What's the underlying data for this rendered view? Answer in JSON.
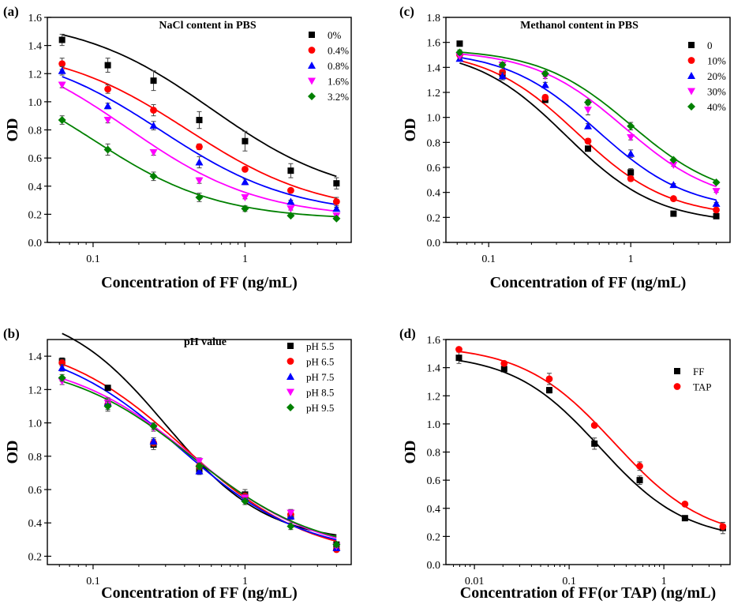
{
  "chart_data": [
    {
      "type": "scatter",
      "panel_label": "(a)",
      "title": "NaCl content in PBS",
      "xlabel": "Concentration of FF (ng/mL)",
      "ylabel": "OD",
      "xscale": "log",
      "xlim": [
        0.05,
        5
      ],
      "ylim": [
        0.0,
        1.6
      ],
      "x_ticks": [
        0.1,
        1
      ],
      "y_ticks": [
        0.0,
        0.2,
        0.4,
        0.6,
        0.8,
        1.0,
        1.2,
        1.4,
        1.6
      ],
      "x_tick_labels": [
        "0.1",
        "1"
      ],
      "y_tick_labels": [
        "0.0",
        "0.2",
        "0.4",
        "0.6",
        "0.8",
        "1.0",
        "1.2",
        "1.4",
        "1.6"
      ],
      "legend_position": "top-right",
      "x": [
        0.0625,
        0.125,
        0.25,
        0.5,
        1,
        2,
        4
      ],
      "series": [
        {
          "name": "0%",
          "color": "#000000",
          "marker": "square",
          "values": [
            1.44,
            1.26,
            1.15,
            0.87,
            0.72,
            0.51,
            0.42
          ],
          "errors": [
            0.04,
            0.05,
            0.07,
            0.06,
            0.07,
            0.05,
            0.04
          ]
        },
        {
          "name": "0.4%",
          "color": "#ff0000",
          "marker": "circle",
          "values": [
            1.27,
            1.09,
            0.94,
            0.68,
            0.52,
            0.37,
            0.29
          ],
          "errors": [
            0.04,
            0.03,
            0.04,
            0.02,
            0.01,
            0.01,
            0.03
          ]
        },
        {
          "name": "0.8%",
          "color": "#0000ff",
          "marker": "triangle-up",
          "values": [
            1.22,
            0.97,
            0.83,
            0.57,
            0.43,
            0.29,
            0.24
          ],
          "errors": [
            0.03,
            0.02,
            0.03,
            0.04,
            0.02,
            0.01,
            0.01
          ]
        },
        {
          "name": "1.6%",
          "color": "#ff00ff",
          "marker": "triangle-down",
          "values": [
            1.12,
            0.87,
            0.64,
            0.44,
            0.32,
            0.24,
            0.19
          ],
          "errors": [
            0.02,
            0.02,
            0.02,
            0.02,
            0.01,
            0.01,
            0.01
          ]
        },
        {
          "name": "3.2%",
          "color": "#008000",
          "marker": "diamond",
          "values": [
            0.87,
            0.66,
            0.47,
            0.32,
            0.24,
            0.19,
            0.17
          ],
          "errors": [
            0.03,
            0.04,
            0.03,
            0.03,
            0.02,
            0.01,
            0.01
          ]
        }
      ],
      "fit_curves": [
        {
          "color": "#000000",
          "top": 1.6,
          "bottom": 0.3,
          "ic50": 0.6,
          "slope": 1.0
        },
        {
          "color": "#ff0000",
          "top": 1.4,
          "bottom": 0.2,
          "ic50": 0.42,
          "slope": 1.0
        },
        {
          "color": "#0000ff",
          "top": 1.4,
          "bottom": 0.19,
          "ic50": 0.28,
          "slope": 1.0
        },
        {
          "color": "#ff00ff",
          "top": 1.45,
          "bottom": 0.17,
          "ic50": 0.17,
          "slope": 1.0
        },
        {
          "color": "#008000",
          "top": 1.3,
          "bottom": 0.16,
          "ic50": 0.1,
          "slope": 1.05
        }
      ]
    },
    {
      "type": "scatter",
      "panel_label": "(c)",
      "title": "Methanol content in PBS",
      "xlabel": "Concentration of FF (ng/mL)",
      "ylabel": "OD",
      "xscale": "log",
      "xlim": [
        0.05,
        5
      ],
      "ylim": [
        0.0,
        1.8
      ],
      "x_ticks": [
        0.1,
        1
      ],
      "y_ticks": [
        0.0,
        0.2,
        0.4,
        0.6,
        0.8,
        1.0,
        1.2,
        1.4,
        1.6,
        1.8
      ],
      "x_tick_labels": [
        "0.1",
        "1"
      ],
      "y_tick_labels": [
        "0.0",
        "0.2",
        "0.4",
        "0.6",
        "0.8",
        "1.0",
        "1.2",
        "1.4",
        "1.6",
        "1.8"
      ],
      "legend_position": "top-right",
      "x": [
        0.0625,
        0.125,
        0.25,
        0.5,
        1,
        2,
        4
      ],
      "series": [
        {
          "name": "0",
          "color": "#000000",
          "marker": "square",
          "values": [
            1.59,
            1.35,
            1.14,
            0.75,
            0.56,
            0.23,
            0.21
          ],
          "errors": [
            0.02,
            0.03,
            0.02,
            0.02,
            0.03,
            0.01,
            0.01
          ]
        },
        {
          "name": "10%",
          "color": "#ff0000",
          "marker": "circle",
          "values": [
            1.5,
            1.36,
            1.16,
            0.81,
            0.51,
            0.35,
            0.26
          ],
          "errors": [
            0.02,
            0.02,
            0.02,
            0.02,
            0.02,
            0.01,
            0.01
          ]
        },
        {
          "name": "20%",
          "color": "#0000ff",
          "marker": "triangle-up",
          "values": [
            1.47,
            1.33,
            1.26,
            0.93,
            0.71,
            0.46,
            0.31
          ],
          "errors": [
            0.02,
            0.03,
            0.02,
            0.02,
            0.03,
            0.01,
            0.01
          ]
        },
        {
          "name": "30%",
          "color": "#ff00ff",
          "marker": "triangle-down",
          "values": [
            1.49,
            1.42,
            1.33,
            1.06,
            0.84,
            0.62,
            0.41
          ],
          "errors": [
            0.02,
            0.02,
            0.02,
            0.04,
            0.02,
            0.01,
            0.01
          ]
        },
        {
          "name": "40%",
          "color": "#008000",
          "marker": "diamond",
          "values": [
            1.52,
            1.42,
            1.35,
            1.12,
            0.93,
            0.66,
            0.48
          ],
          "errors": [
            0.02,
            0.02,
            0.02,
            0.02,
            0.03,
            0.01,
            0.01
          ]
        }
      ],
      "fit_curves": [
        {
          "color": "#000000",
          "top": 1.56,
          "bottom": 0.15,
          "ic50": 0.35,
          "slope": 1.35
        },
        {
          "color": "#ff0000",
          "top": 1.55,
          "bottom": 0.2,
          "ic50": 0.42,
          "slope": 1.35
        },
        {
          "color": "#0000ff",
          "top": 1.54,
          "bottom": 0.25,
          "ic50": 0.58,
          "slope": 1.35
        },
        {
          "color": "#ff00ff",
          "top": 1.54,
          "bottom": 0.3,
          "ic50": 0.9,
          "slope": 1.35
        },
        {
          "color": "#008000",
          "top": 1.55,
          "bottom": 0.33,
          "ic50": 1.0,
          "slope": 1.35
        }
      ]
    },
    {
      "type": "scatter",
      "panel_label": "(b)",
      "title": "pH value",
      "xlabel": "Concentration of FF (ng/mL)",
      "ylabel": "OD",
      "xscale": "log",
      "xlim": [
        0.05,
        5
      ],
      "ylim": [
        0.15,
        1.5
      ],
      "x_ticks": [
        0.1,
        1
      ],
      "y_ticks": [
        0.2,
        0.4,
        0.6,
        0.8,
        1.0,
        1.2,
        1.4
      ],
      "x_tick_labels": [
        "0.1",
        "1"
      ],
      "y_tick_labels": [
        "0.2",
        "0.4",
        "0.6",
        "0.8",
        "1.0",
        "1.2",
        "1.4"
      ],
      "legend_position": "top-right",
      "x": [
        0.0625,
        0.125,
        0.25,
        0.5,
        1,
        2,
        4
      ],
      "series": [
        {
          "name": "pH 5.5",
          "color": "#000000",
          "marker": "square",
          "values": [
            1.37,
            1.21,
            0.87,
            0.72,
            0.57,
            0.44,
            0.27
          ],
          "errors": [
            0.02,
            0.01,
            0.03,
            0.02,
            0.03,
            0.02,
            0.01
          ]
        },
        {
          "name": "pH 6.5",
          "color": "#ff0000",
          "marker": "circle",
          "values": [
            1.36,
            1.11,
            0.88,
            0.74,
            0.56,
            0.45,
            0.24
          ],
          "errors": [
            0.02,
            0.03,
            0.02,
            0.03,
            0.02,
            0.03,
            0.01
          ]
        },
        {
          "name": "pH 7.5",
          "color": "#0000ff",
          "marker": "triangle-up",
          "values": [
            1.33,
            1.12,
            0.89,
            0.71,
            0.55,
            0.44,
            0.25
          ],
          "errors": [
            0.02,
            0.03,
            0.02,
            0.02,
            0.02,
            0.02,
            0.01
          ]
        },
        {
          "name": "pH 8.5",
          "color": "#ff00ff",
          "marker": "triangle-down",
          "values": [
            1.25,
            1.12,
            0.97,
            0.77,
            0.55,
            0.46,
            0.26
          ],
          "errors": [
            0.02,
            0.02,
            0.02,
            0.02,
            0.02,
            0.02,
            0.01
          ]
        },
        {
          "name": "pH 9.5",
          "color": "#008000",
          "marker": "diamond",
          "values": [
            1.27,
            1.1,
            0.98,
            0.74,
            0.53,
            0.38,
            0.27
          ],
          "errors": [
            0.02,
            0.03,
            0.02,
            0.02,
            0.02,
            0.02,
            0.01
          ]
        }
      ],
      "fit_curves": [
        {
          "color": "#000000",
          "top": 1.7,
          "bottom": 0.28,
          "ic50": 0.3,
          "slope": 1.3
        },
        {
          "color": "#ff0000",
          "top": 1.52,
          "bottom": 0.18,
          "ic50": 0.4,
          "slope": 1.05
        },
        {
          "color": "#0000ff",
          "top": 1.5,
          "bottom": 0.2,
          "ic50": 0.37,
          "slope": 1.05
        },
        {
          "color": "#ff00ff",
          "top": 1.4,
          "bottom": 0.2,
          "ic50": 0.45,
          "slope": 1.05
        },
        {
          "color": "#008000",
          "top": 1.38,
          "bottom": 0.21,
          "ic50": 0.45,
          "slope": 1.05
        }
      ]
    },
    {
      "type": "scatter",
      "panel_label": "(d)",
      "title": "",
      "xlabel": "Concentration of  FF(or TAP) (ng/mL)",
      "ylabel": "OD",
      "xscale": "log",
      "xlim": [
        0.005,
        5
      ],
      "ylim": [
        0.0,
        1.6
      ],
      "x_ticks": [
        0.01,
        0.1,
        1
      ],
      "y_ticks": [
        0.0,
        0.2,
        0.4,
        0.6,
        0.8,
        1.0,
        1.2,
        1.4,
        1.6
      ],
      "x_tick_labels": [
        "0.01",
        "0.1",
        "1"
      ],
      "y_tick_labels": [
        "0.0",
        "0.2",
        "0.4",
        "0.6",
        "0.8",
        "1.0",
        "1.2",
        "1.4",
        "1.6"
      ],
      "legend_position": "top-right",
      "x": [
        0.00686,
        0.0206,
        0.0617,
        0.185,
        0.556,
        1.67,
        4.2
      ],
      "series": [
        {
          "name": "FF",
          "color": "#000000",
          "marker": "square",
          "values": [
            1.47,
            1.39,
            1.24,
            0.86,
            0.6,
            0.33,
            0.26
          ],
          "errors": [
            0.04,
            0.01,
            0.02,
            0.04,
            0.03,
            0.01,
            0.04
          ]
        },
        {
          "name": "TAP",
          "color": "#ff0000",
          "marker": "circle",
          "values": [
            1.53,
            1.43,
            1.32,
            0.99,
            0.7,
            0.43,
            0.27
          ],
          "errors": [
            0.01,
            0.01,
            0.04,
            0.01,
            0.03,
            0.01,
            0.03
          ]
        }
      ],
      "fit_curves": [
        {
          "color": "#000000",
          "top": 1.5,
          "bottom": 0.17,
          "ic50": 0.21,
          "slope": 0.95
        },
        {
          "color": "#ff0000",
          "top": 1.56,
          "bottom": 0.17,
          "ic50": 0.3,
          "slope": 0.9
        }
      ]
    }
  ]
}
